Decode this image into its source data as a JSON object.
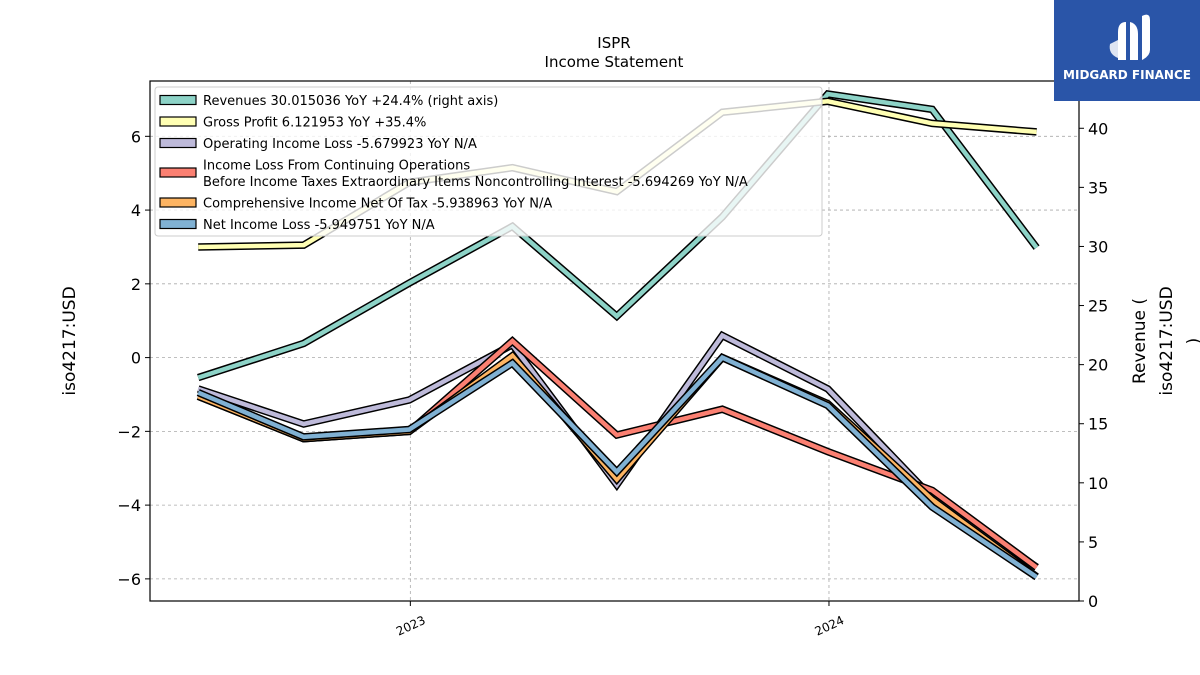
{
  "chart_data": {
    "type": "line",
    "title": "ISPR",
    "subtitle": "Income Statement",
    "ylabel_left": "iso4217:USD",
    "ylabel_right": "Revenue (\niso4217:USD\n)",
    "x_ticks": [
      "2023",
      "2024"
    ],
    "x": [
      "2022-06-30",
      "2022-09-30",
      "2022-12-31",
      "2023-03-31",
      "2023-06-30",
      "2023-09-30",
      "2023-12-31",
      "2024-03-31",
      "2024-06-30"
    ],
    "ylim_left": [
      -6.6,
      7.5
    ],
    "yticks_left": [
      -6,
      -4,
      -2,
      0,
      2,
      4,
      6
    ],
    "ylim_right": [
      0,
      44
    ],
    "yticks_right": [
      0,
      5,
      10,
      15,
      20,
      25,
      30,
      35,
      40
    ],
    "grid": true,
    "legend_position": "upper-left",
    "series": [
      {
        "name": "Revenues",
        "legend": "Revenues  30.015036 YoY +24.4% (right axis)",
        "axis": "right",
        "color": "#8dd3c7",
        "values": [
          18.9,
          21.8,
          26.9,
          31.7,
          24.1,
          32.5,
          42.9,
          41.6,
          29.9
        ]
      },
      {
        "name": "Gross Profit",
        "legend": "Gross Profit  6.121953 YoY +35.4%",
        "axis": "left",
        "color": "#ffffb3",
        "values": [
          3.0,
          3.05,
          4.75,
          5.15,
          4.5,
          6.65,
          6.95,
          6.35,
          6.12
        ]
      },
      {
        "name": "Operating Income Loss",
        "legend": "Operating Income Loss  -5.679923 YoY N/A",
        "axis": "left",
        "color": "#bebada",
        "values": [
          -0.85,
          -1.8,
          -1.15,
          0.35,
          -3.45,
          0.6,
          -0.85,
          -3.8,
          -5.68
        ]
      },
      {
        "name": "Income Loss From Continuing Operations Before Income Taxes Extraordinary Items Noncontrolling Interest",
        "legend": "Income Loss From Continuing Operations\nBefore Income Taxes Extraordinary Items Noncontrolling Interest  -5.694269 YoY N/A",
        "axis": "left",
        "color": "#fb8072",
        "values": [
          -1.05,
          -2.2,
          -2.0,
          0.45,
          -2.1,
          -1.4,
          -2.55,
          -3.6,
          -5.69
        ]
      },
      {
        "name": "Comprehensive Income Net Of Tax",
        "legend": "Comprehensive Income Net Of Tax  -5.938963 YoY N/A",
        "axis": "left",
        "color": "#fdb462",
        "values": [
          -1.05,
          -2.2,
          -2.0,
          0.05,
          -3.3,
          0.0,
          -1.25,
          -3.85,
          -5.94
        ]
      },
      {
        "name": "Net Income Loss",
        "legend": "Net Income Loss  -5.949751 YoY N/A",
        "axis": "left",
        "color": "#80b1d3",
        "values": [
          -0.95,
          -2.15,
          -1.95,
          -0.15,
          -3.1,
          0.0,
          -1.3,
          -4.05,
          -5.95
        ]
      }
    ]
  },
  "logo": {
    "text": "MIDGARD FINANCE",
    "color": "#2a55a8"
  }
}
